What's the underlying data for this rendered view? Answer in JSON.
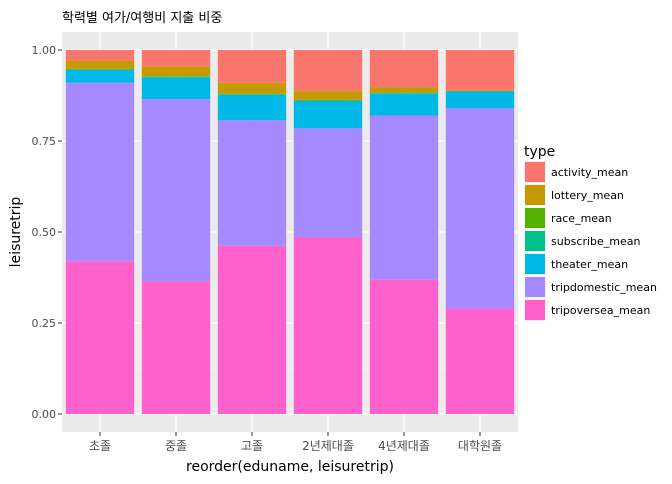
{
  "chart_data": {
    "type": "bar",
    "stacked": true,
    "title": "학력별 여가/여행비 지출 비중",
    "xlabel": "reorder(eduname, leisuretrip)",
    "ylabel": "leisuretrip",
    "ylim": [
      0,
      1
    ],
    "yticks": [
      "0.00",
      "0.25",
      "0.50",
      "0.75",
      "1.00"
    ],
    "grid": true,
    "legend_position": "right",
    "legend_title": "type",
    "categories": [
      "초졸",
      "중졸",
      "고졸",
      "2년제대졸",
      "4년제대졸",
      "대학원졸"
    ],
    "series": [
      {
        "name": "tripoversea_mean",
        "color": "#FF61CC",
        "values": [
          0.42,
          0.365,
          0.462,
          0.485,
          0.37,
          0.29
        ]
      },
      {
        "name": "tripdomestic_mean",
        "color": "#A58AFF",
        "values": [
          0.49,
          0.5,
          0.345,
          0.3,
          0.45,
          0.55
        ]
      },
      {
        "name": "theater_mean",
        "color": "#00B8E7",
        "values": [
          0.035,
          0.06,
          0.07,
          0.075,
          0.06,
          0.045
        ]
      },
      {
        "name": "subscribe_mean",
        "color": "#00C08B",
        "values": [
          0.001,
          0.001,
          0.001,
          0.001,
          0.001,
          0.001
        ]
      },
      {
        "name": "race_mean",
        "color": "#53B400",
        "values": [
          0.002,
          0.002,
          0.002,
          0.002,
          0.002,
          0.002
        ]
      },
      {
        "name": "lottery_mean",
        "color": "#C49A00",
        "values": [
          0.022,
          0.027,
          0.03,
          0.024,
          0.015,
          0.0
        ]
      },
      {
        "name": "activity_mean",
        "color": "#F8766D",
        "values": [
          0.03,
          0.045,
          0.09,
          0.113,
          0.102,
          0.112
        ]
      }
    ],
    "legend_order": [
      "activity_mean",
      "lottery_mean",
      "race_mean",
      "subscribe_mean",
      "theater_mean",
      "tripdomestic_mean",
      "tripoversea_mean"
    ]
  }
}
